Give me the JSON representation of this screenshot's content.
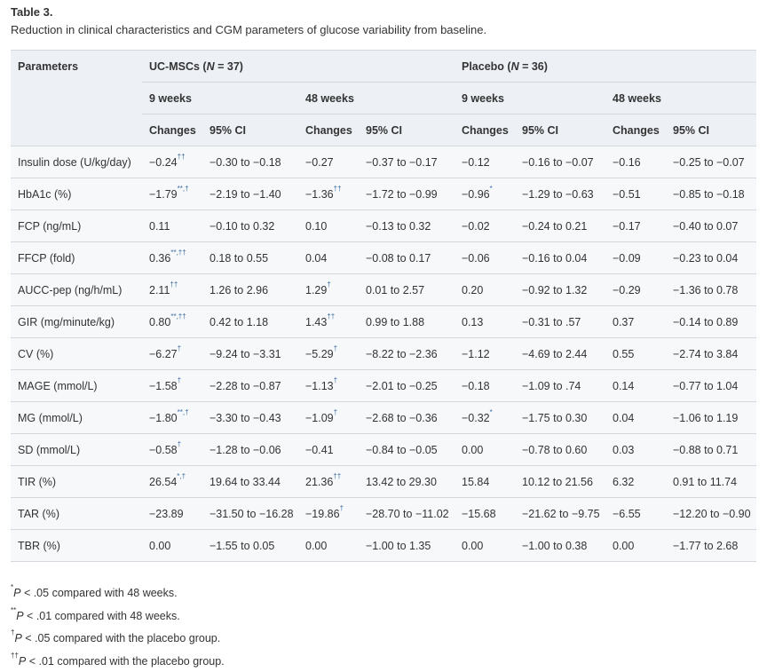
{
  "title": "Table 3.",
  "caption": "Reduction in clinical characteristics and CGM parameters of glucose variability from baseline.",
  "table": {
    "header": {
      "parameters": "Parameters",
      "groups": [
        {
          "prefix": "UC-MSCs (",
          "italic": "N",
          "suffix": " = 37)"
        },
        {
          "prefix": "Placebo (",
          "italic": "N",
          "suffix": " = 36)"
        }
      ],
      "periods": [
        "9 weeks",
        "48 weeks",
        "9 weeks",
        "48 weeks"
      ],
      "columns": [
        "Changes",
        "95% CI"
      ]
    },
    "rows": [
      {
        "label": "Insulin dose (U/kg/day)",
        "cells": [
          {
            "change": "−0.24",
            "sup": "††",
            "ci": "−0.30 to −0.18"
          },
          {
            "change": "−0.27",
            "ci": "−0.37 to −0.17"
          },
          {
            "change": "−0.12",
            "ci": "−0.16 to −0.07"
          },
          {
            "change": "−0.16",
            "ci": "−0.25 to −0.07"
          }
        ]
      },
      {
        "label": "HbA1c (%)",
        "cells": [
          {
            "change": "−1.79",
            "sup": "**,†",
            "ci": "−2.19 to −1.40"
          },
          {
            "change": "−1.36",
            "sup": "††",
            "ci": "−1.72 to −0.99"
          },
          {
            "change": "−0.96",
            "sup": "*",
            "ci": "−1.29 to −0.63"
          },
          {
            "change": "−0.51",
            "ci": "−0.85 to −0.18"
          }
        ]
      },
      {
        "label": "FCP (ng/mL)",
        "cells": [
          {
            "change": "0.11",
            "ci": "−0.10 to 0.32"
          },
          {
            "change": "0.10",
            "ci": "−0.13 to 0.32"
          },
          {
            "change": "−0.02",
            "ci": "−0.24 to 0.21"
          },
          {
            "change": "−0.17",
            "ci": "−0.40 to 0.07"
          }
        ]
      },
      {
        "label": "FFCP (fold)",
        "cells": [
          {
            "change": "0.36",
            "sup": "**,††",
            "ci": "0.18 to 0.55"
          },
          {
            "change": "0.04",
            "ci": "−0.08 to 0.17"
          },
          {
            "change": "−0.06",
            "ci": "−0.16 to 0.04"
          },
          {
            "change": "−0.09",
            "ci": "−0.23 to 0.04"
          }
        ]
      },
      {
        "label": "AUCC-pep (ng/h/mL)",
        "cells": [
          {
            "change": "2.11",
            "sup": "††",
            "ci": "1.26 to 2.96"
          },
          {
            "change": "1.29",
            "sup": "†",
            "ci": "0.01 to 2.57"
          },
          {
            "change": "0.20",
            "ci": "−0.92 to 1.32"
          },
          {
            "change": "−0.29",
            "ci": "−1.36 to 0.78"
          }
        ]
      },
      {
        "label": "GIR (mg/minute/kg)",
        "cells": [
          {
            "change": "0.80",
            "sup": "**,††",
            "ci": "0.42 to 1.18"
          },
          {
            "change": "1.43",
            "sup": "††",
            "ci": "0.99 to 1.88"
          },
          {
            "change": "0.13",
            "ci": "−0.31 to .57"
          },
          {
            "change": "0.37",
            "ci": "−0.14 to 0.89"
          }
        ]
      },
      {
        "label": "CV (%)",
        "cells": [
          {
            "change": "−6.27",
            "sup": "†",
            "ci": "−9.24 to −3.31"
          },
          {
            "change": "−5.29",
            "sup": "†",
            "ci": "−8.22 to −2.36"
          },
          {
            "change": "−1.12",
            "ci": "−4.69 to 2.44"
          },
          {
            "change": "0.55",
            "ci": "−2.74 to 3.84"
          }
        ]
      },
      {
        "label": "MAGE (mmol/L)",
        "cells": [
          {
            "change": "−1.58",
            "sup": "†",
            "ci": "−2.28 to −0.87"
          },
          {
            "change": "−1.13",
            "sup": "†",
            "ci": "−2.01 to −0.25"
          },
          {
            "change": "−0.18",
            "ci": "−1.09 to .74"
          },
          {
            "change": "0.14",
            "ci": "−0.77 to 1.04"
          }
        ]
      },
      {
        "label": "MG (mmol/L)",
        "cells": [
          {
            "change": "−1.80",
            "sup": "**,†",
            "ci": "−3.30 to −0.43"
          },
          {
            "change": "−1.09",
            "sup": "†",
            "ci": "−2.68 to −0.36"
          },
          {
            "change": "−0.32",
            "sup": "*",
            "ci": "−1.75 to 0.30"
          },
          {
            "change": "0.04",
            "ci": "−1.06 to 1.19"
          }
        ]
      },
      {
        "label": "SD (mmol/L)",
        "cells": [
          {
            "change": "−0.58",
            "sup": "†",
            "ci": "−1.28 to −0.06"
          },
          {
            "change": "−0.41",
            "ci": "−0.84 to −0.05"
          },
          {
            "change": "0.00",
            "ci": "−0.78 to 0.60"
          },
          {
            "change": "0.03",
            "ci": "−0.88 to 0.71"
          }
        ]
      },
      {
        "label": "TIR (%)",
        "cells": [
          {
            "change": "26.54",
            "sup": "*,†",
            "ci": "19.64 to 33.44"
          },
          {
            "change": "21.36",
            "sup": "††",
            "ci": "13.42 to 29.30"
          },
          {
            "change": "15.84",
            "ci": "10.12 to 21.56"
          },
          {
            "change": "6.32",
            "ci": "0.91 to 11.74"
          }
        ]
      },
      {
        "label": "TAR (%)",
        "cells": [
          {
            "change": "−23.89",
            "ci": "−31.50 to −16.28"
          },
          {
            "change": "−19.86",
            "sup": "†",
            "ci": "−28.70 to −11.02"
          },
          {
            "change": "−15.68",
            "ci": "−21.62 to −9.75"
          },
          {
            "change": "−6.55",
            "ci": "−12.20 to −0.90"
          }
        ]
      },
      {
        "label": "TBR (%)",
        "cells": [
          {
            "change": "0.00",
            "ci": "−1.55 to 0.05"
          },
          {
            "change": "0.00",
            "ci": "−1.00 to 1.35"
          },
          {
            "change": "0.00",
            "ci": "−1.00 to 0.38"
          },
          {
            "change": "0.00",
            "ci": "−1.77 to 2.68"
          }
        ]
      }
    ]
  },
  "footnotes": [
    {
      "mark": "*",
      "p": "P",
      "text": " < .05 compared with 48 weeks."
    },
    {
      "mark": "**",
      "p": "P",
      "text": " < .01 compared with 48 weeks."
    },
    {
      "mark": "†",
      "p": "P",
      "text": " < .05 compared with the placebo group."
    },
    {
      "mark": "††",
      "p": "P",
      "text": " < .01 compared with the placebo group."
    }
  ]
}
